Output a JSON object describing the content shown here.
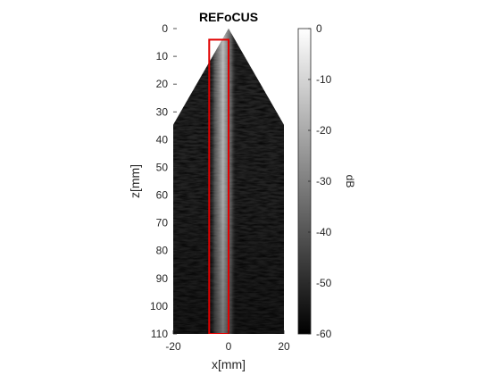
{
  "chart_data": {
    "type": "heatmap",
    "title": "REFoCUS",
    "xlabel": "x[mm]",
    "ylabel": "z[mm]",
    "xlim": [
      -20,
      20
    ],
    "ylim": [
      0,
      110
    ],
    "y_reversed": true,
    "x_ticks": [
      -20,
      0,
      20
    ],
    "y_ticks": [
      0,
      10,
      20,
      30,
      40,
      50,
      60,
      70,
      80,
      90,
      100,
      110
    ],
    "colormap": "gray",
    "colorbar": {
      "label": "dB",
      "range": [
        -60,
        0
      ],
      "ticks": [
        0,
        -10,
        -20,
        -30,
        -40,
        -50,
        -60
      ]
    },
    "sector": {
      "apex": [
        0,
        0
      ],
      "half_angle_deg": 30
    },
    "bright_band_center_x": -2,
    "highlight_box": {
      "x": [
        -7,
        0
      ],
      "z": [
        4,
        110
      ],
      "color": "#e00000"
    }
  }
}
